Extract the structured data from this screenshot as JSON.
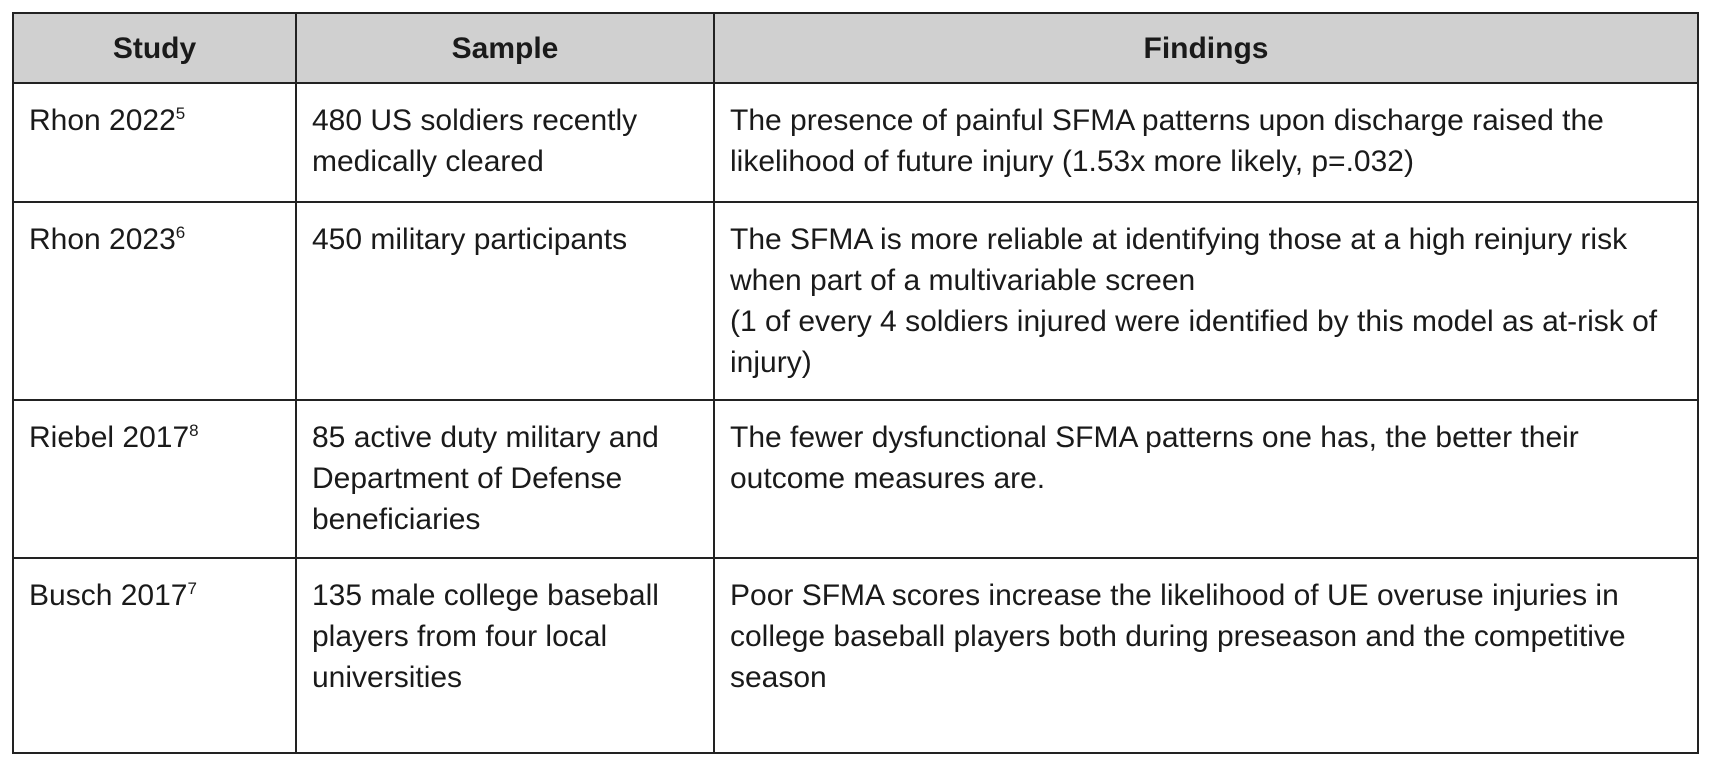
{
  "table": {
    "headers": [
      "Study",
      "Sample",
      "Findings"
    ],
    "rows": [
      {
        "study": "Rhon 2022",
        "ref": "5",
        "sample": "480 US soldiers recently medically cleared",
        "findings": "The presence of painful SFMA patterns upon discharge raised the likelihood of future injury (1.53x more likely, p=.032)"
      },
      {
        "study": "Rhon 2023",
        "ref": "6",
        "sample": "450 military participants",
        "findings": "The SFMA is more reliable at identifying those at a high reinjury risk when part of a multivariable screen\n(1 of every 4 soldiers injured were identified by this model as at-risk of injury)"
      },
      {
        "study": "Riebel 2017",
        "ref": "8",
        "sample": "85 active duty military and Department of Defense beneficiaries",
        "findings": "The fewer dysfunctional SFMA patterns one has, the better their outcome measures are."
      },
      {
        "study": "Busch 2017",
        "ref": "7",
        "sample": "135 male college baseball players from four local universities",
        "findings": "Poor SFMA scores increase the likelihood of UE overuse injuries in college baseball players both during preseason and the competitive season"
      }
    ]
  }
}
